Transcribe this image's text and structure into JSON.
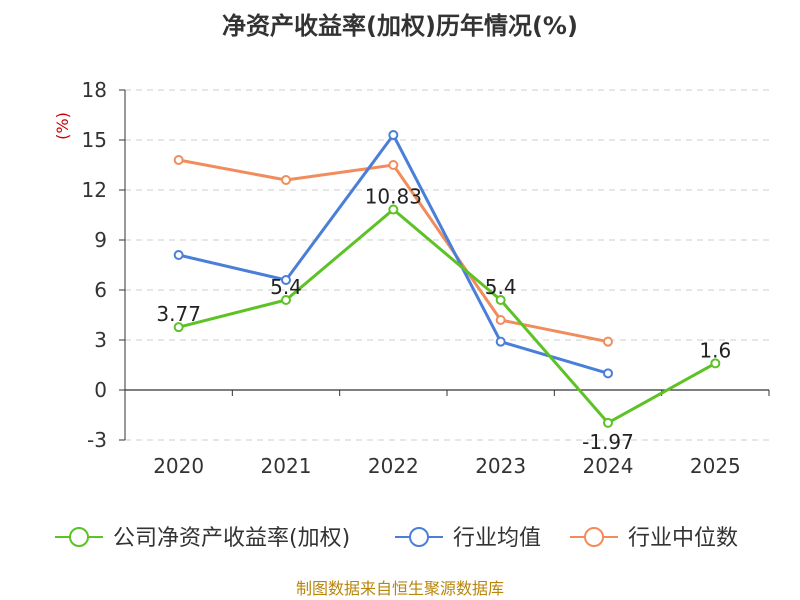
{
  "chart_data": {
    "type": "line",
    "title": "净资产收益率(加权)历年情况(%)",
    "unit_label": "(%)",
    "categories": [
      "2020",
      "2021",
      "2022",
      "2023",
      "2024",
      "2025"
    ],
    "ylim": [
      -3,
      18
    ],
    "yticks": [
      -3,
      0,
      3,
      6,
      9,
      12,
      15,
      18
    ],
    "grid": true,
    "legend_position": "bottom",
    "series": [
      {
        "name": "公司净资产收益率(加权)",
        "color": "#5cc226",
        "values": [
          3.77,
          5.4,
          10.83,
          5.4,
          -1.97,
          1.6
        ],
        "labels": [
          "3.77",
          "5.4",
          "10.83",
          "5.4",
          "-1.97",
          "1.6"
        ]
      },
      {
        "name": "行业均值",
        "color": "#4a7fd9",
        "values": [
          8.1,
          6.6,
          15.3,
          2.9,
          1.0,
          null
        ]
      },
      {
        "name": "行业中位数",
        "color": "#f28c5c",
        "values": [
          13.8,
          12.6,
          13.5,
          4.2,
          2.9,
          null
        ]
      }
    ],
    "source": "制图数据来自恒生聚源数据库"
  }
}
